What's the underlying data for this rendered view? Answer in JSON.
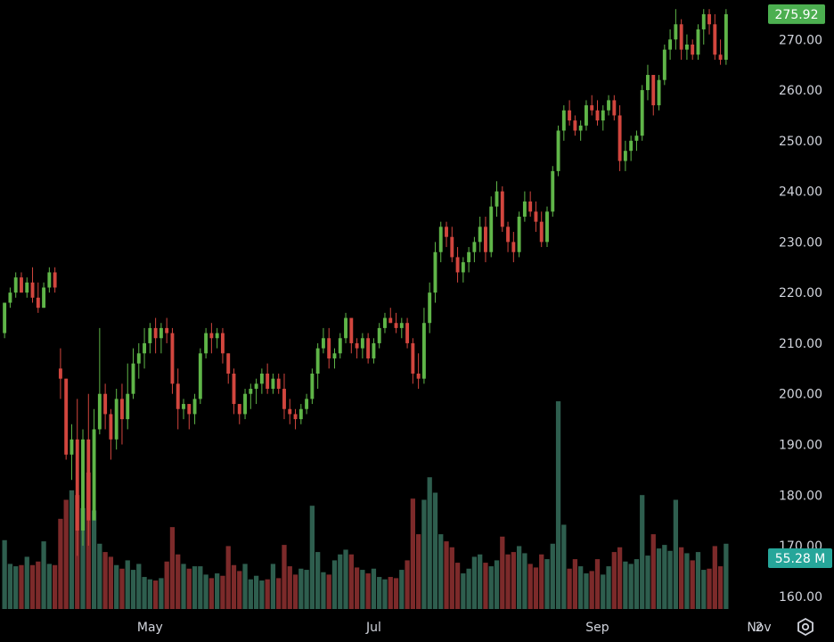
{
  "chart_data": {
    "type": "candlestick",
    "price_axis": {
      "ticks": [
        "270.00",
        "260.00",
        "250.00",
        "240.00",
        "230.00",
        "220.00",
        "210.00",
        "200.00",
        "190.00",
        "180.00",
        "170.00",
        "160.00"
      ],
      "min": 157.5,
      "max": 277.8
    },
    "time_axis": {
      "labels": [
        {
          "text": "May",
          "index": 26
        },
        {
          "text": "Jul",
          "index": 66
        },
        {
          "text": "Sep",
          "index": 106
        },
        {
          "text": "Nov",
          "index": 148
        },
        {
          "text": "2",
          "index": 170
        }
      ]
    },
    "last_price_label": "275.92",
    "last_volume_label": "55.28 M",
    "volume_max_millions": 160,
    "colors": {
      "up": "#5fb548",
      "down": "#d2463e",
      "vol_up": "#2e5e4e",
      "vol_down": "#7c2a2a",
      "price_tag": "#4caf50",
      "volume_tag": "#26a69a"
    },
    "candles": [
      [
        212,
        218,
        211,
        218,
        58
      ],
      [
        218,
        221,
        217,
        220,
        38
      ],
      [
        220,
        224,
        219,
        223,
        36
      ],
      [
        223,
        224,
        220,
        220,
        37
      ],
      [
        220,
        223,
        219,
        222,
        44
      ],
      [
        222,
        225,
        218,
        219,
        37
      ],
      [
        219,
        222,
        216,
        217,
        40
      ],
      [
        217,
        222,
        217,
        221,
        57
      ],
      [
        221,
        225,
        220,
        224,
        38
      ],
      [
        224,
        225,
        220,
        221,
        37
      ],
      [
        205,
        209,
        199,
        203,
        76
      ],
      [
        203,
        203,
        187,
        188,
        92
      ],
      [
        188,
        194,
        183,
        191,
        100
      ],
      [
        191,
        199,
        168,
        173,
        96
      ],
      [
        173,
        193,
        170,
        191,
        85
      ],
      [
        191,
        200,
        170,
        175,
        115
      ],
      [
        175,
        197,
        175,
        193,
        83
      ],
      [
        193,
        213,
        192,
        200,
        55
      ],
      [
        200,
        202,
        193,
        196,
        48
      ],
      [
        196,
        197,
        187,
        191,
        44
      ],
      [
        191,
        201,
        189,
        199,
        37
      ],
      [
        199,
        202,
        190,
        195,
        34
      ],
      [
        195,
        206,
        193,
        200,
        41
      ],
      [
        200,
        209,
        199,
        206,
        33
      ],
      [
        206,
        210,
        203,
        208,
        38
      ],
      [
        208,
        213,
        205,
        210,
        27
      ],
      [
        210,
        214,
        208,
        213,
        25
      ],
      [
        213,
        215,
        208,
        211,
        24
      ],
      [
        211,
        214,
        208,
        213,
        26
      ],
      [
        213,
        215,
        210,
        212,
        40
      ],
      [
        212,
        213,
        200,
        202,
        69
      ],
      [
        202,
        205,
        193,
        197,
        46
      ],
      [
        197,
        199,
        195,
        198,
        38
      ],
      [
        198,
        198,
        193,
        196,
        34
      ],
      [
        196,
        200,
        194,
        199,
        36
      ],
      [
        199,
        209,
        198,
        208,
        36
      ],
      [
        208,
        213,
        207,
        212,
        29
      ],
      [
        212,
        214,
        208,
        211,
        26
      ],
      [
        211,
        213,
        209,
        212,
        30
      ],
      [
        212,
        213,
        206,
        208,
        28
      ],
      [
        208,
        208,
        202,
        204,
        53
      ],
      [
        204,
        205,
        196,
        198,
        37
      ],
      [
        198,
        198,
        194,
        196,
        32
      ],
      [
        196,
        201,
        195,
        200,
        38
      ],
      [
        200,
        202,
        197,
        201,
        25
      ],
      [
        201,
        203,
        198,
        202,
        28
      ],
      [
        202,
        205,
        200,
        204,
        24
      ],
      [
        204,
        206,
        200,
        201,
        25
      ],
      [
        201,
        204,
        200,
        203,
        38
      ],
      [
        203,
        204,
        200,
        201,
        26
      ],
      [
        201,
        204,
        195,
        197,
        54
      ],
      [
        197,
        199,
        194,
        196,
        36
      ],
      [
        196,
        197,
        193,
        195,
        29
      ],
      [
        195,
        198,
        194,
        197,
        34
      ],
      [
        197,
        200,
        196,
        199,
        33
      ],
      [
        199,
        205,
        198,
        204,
        87
      ],
      [
        204,
        210,
        201,
        209,
        48
      ],
      [
        209,
        213,
        208,
        211,
        31
      ],
      [
        211,
        213,
        205,
        207,
        29
      ],
      [
        207,
        209,
        205,
        208,
        41
      ],
      [
        208,
        212,
        207,
        211,
        46
      ],
      [
        211,
        216,
        210,
        215,
        50
      ],
      [
        215,
        214,
        208,
        210,
        46
      ],
      [
        210,
        211,
        207,
        209,
        35
      ],
      [
        209,
        212,
        207,
        211,
        33
      ],
      [
        211,
        212,
        206,
        207,
        30
      ],
      [
        207,
        211,
        206,
        210,
        34
      ],
      [
        210,
        214,
        209,
        213,
        27
      ],
      [
        213,
        216,
        212,
        215,
        25
      ],
      [
        215,
        217,
        214,
        214,
        27
      ],
      [
        214,
        216,
        212,
        213,
        26
      ],
      [
        213,
        215,
        211,
        214,
        33
      ],
      [
        214,
        215,
        209,
        210,
        41
      ],
      [
        210,
        211,
        202,
        204,
        93
      ],
      [
        204,
        208,
        201,
        203,
        63
      ],
      [
        203,
        217,
        202,
        214,
        92
      ],
      [
        214,
        222,
        212,
        220,
        111
      ],
      [
        220,
        230,
        218,
        228,
        98
      ],
      [
        228,
        234,
        226,
        233,
        63
      ],
      [
        233,
        234,
        229,
        231,
        57
      ],
      [
        231,
        233,
        226,
        227,
        52
      ],
      [
        227,
        229,
        222,
        224,
        39
      ],
      [
        224,
        227,
        222,
        226,
        30
      ],
      [
        226,
        229,
        224,
        228,
        34
      ],
      [
        228,
        231,
        226,
        230,
        44
      ],
      [
        230,
        235,
        228,
        233,
        46
      ],
      [
        233,
        235,
        226,
        228,
        39
      ],
      [
        228,
        239,
        227,
        237,
        36
      ],
      [
        237,
        242,
        235,
        240,
        41
      ],
      [
        240,
        241,
        232,
        233,
        61
      ],
      [
        233,
        234,
        228,
        230,
        46
      ],
      [
        230,
        232,
        226,
        228,
        48
      ],
      [
        228,
        236,
        227,
        235,
        53
      ],
      [
        235,
        240,
        234,
        238,
        47
      ],
      [
        238,
        240,
        235,
        236,
        38
      ],
      [
        236,
        238,
        232,
        234,
        35
      ],
      [
        234,
        236,
        229,
        230,
        46
      ],
      [
        230,
        237,
        229,
        236,
        42
      ],
      [
        236,
        245,
        235,
        244,
        55
      ],
      [
        244,
        253,
        243,
        252,
        175
      ],
      [
        252,
        257,
        250,
        256,
        71
      ],
      [
        256,
        258,
        253,
        254,
        34
      ],
      [
        254,
        255,
        251,
        252,
        42
      ],
      [
        252,
        254,
        250,
        253,
        36
      ],
      [
        253,
        258,
        252,
        257,
        30
      ],
      [
        257,
        259,
        255,
        256,
        32
      ],
      [
        256,
        258,
        253,
        254,
        42
      ],
      [
        254,
        257,
        252,
        256,
        29
      ],
      [
        256,
        259,
        255,
        258,
        36
      ],
      [
        258,
        259,
        254,
        255,
        48
      ],
      [
        255,
        257,
        244,
        246,
        52
      ],
      [
        246,
        250,
        244,
        248,
        40
      ],
      [
        248,
        251,
        246,
        250,
        38
      ],
      [
        250,
        252,
        248,
        251,
        42
      ],
      [
        251,
        261,
        250,
        260,
        96
      ],
      [
        260,
        265,
        258,
        263,
        45
      ],
      [
        263,
        262,
        255,
        257,
        63
      ],
      [
        257,
        263,
        256,
        262,
        51
      ],
      [
        262,
        269,
        261,
        268,
        54
      ],
      [
        268,
        272,
        266,
        270,
        49
      ],
      [
        270,
        276,
        268,
        273,
        92
      ],
      [
        273,
        274,
        266,
        268,
        52
      ],
      [
        268,
        271,
        266,
        269,
        47
      ],
      [
        269,
        270,
        266,
        267,
        41
      ],
      [
        267,
        273,
        266,
        272,
        48
      ],
      [
        272,
        276,
        269,
        275,
        33
      ],
      [
        275,
        276,
        271,
        273,
        34
      ],
      [
        273,
        275,
        266,
        267,
        53
      ],
      [
        267,
        270,
        265,
        266,
        36
      ],
      [
        266,
        276,
        265,
        275,
        55
      ]
    ]
  }
}
